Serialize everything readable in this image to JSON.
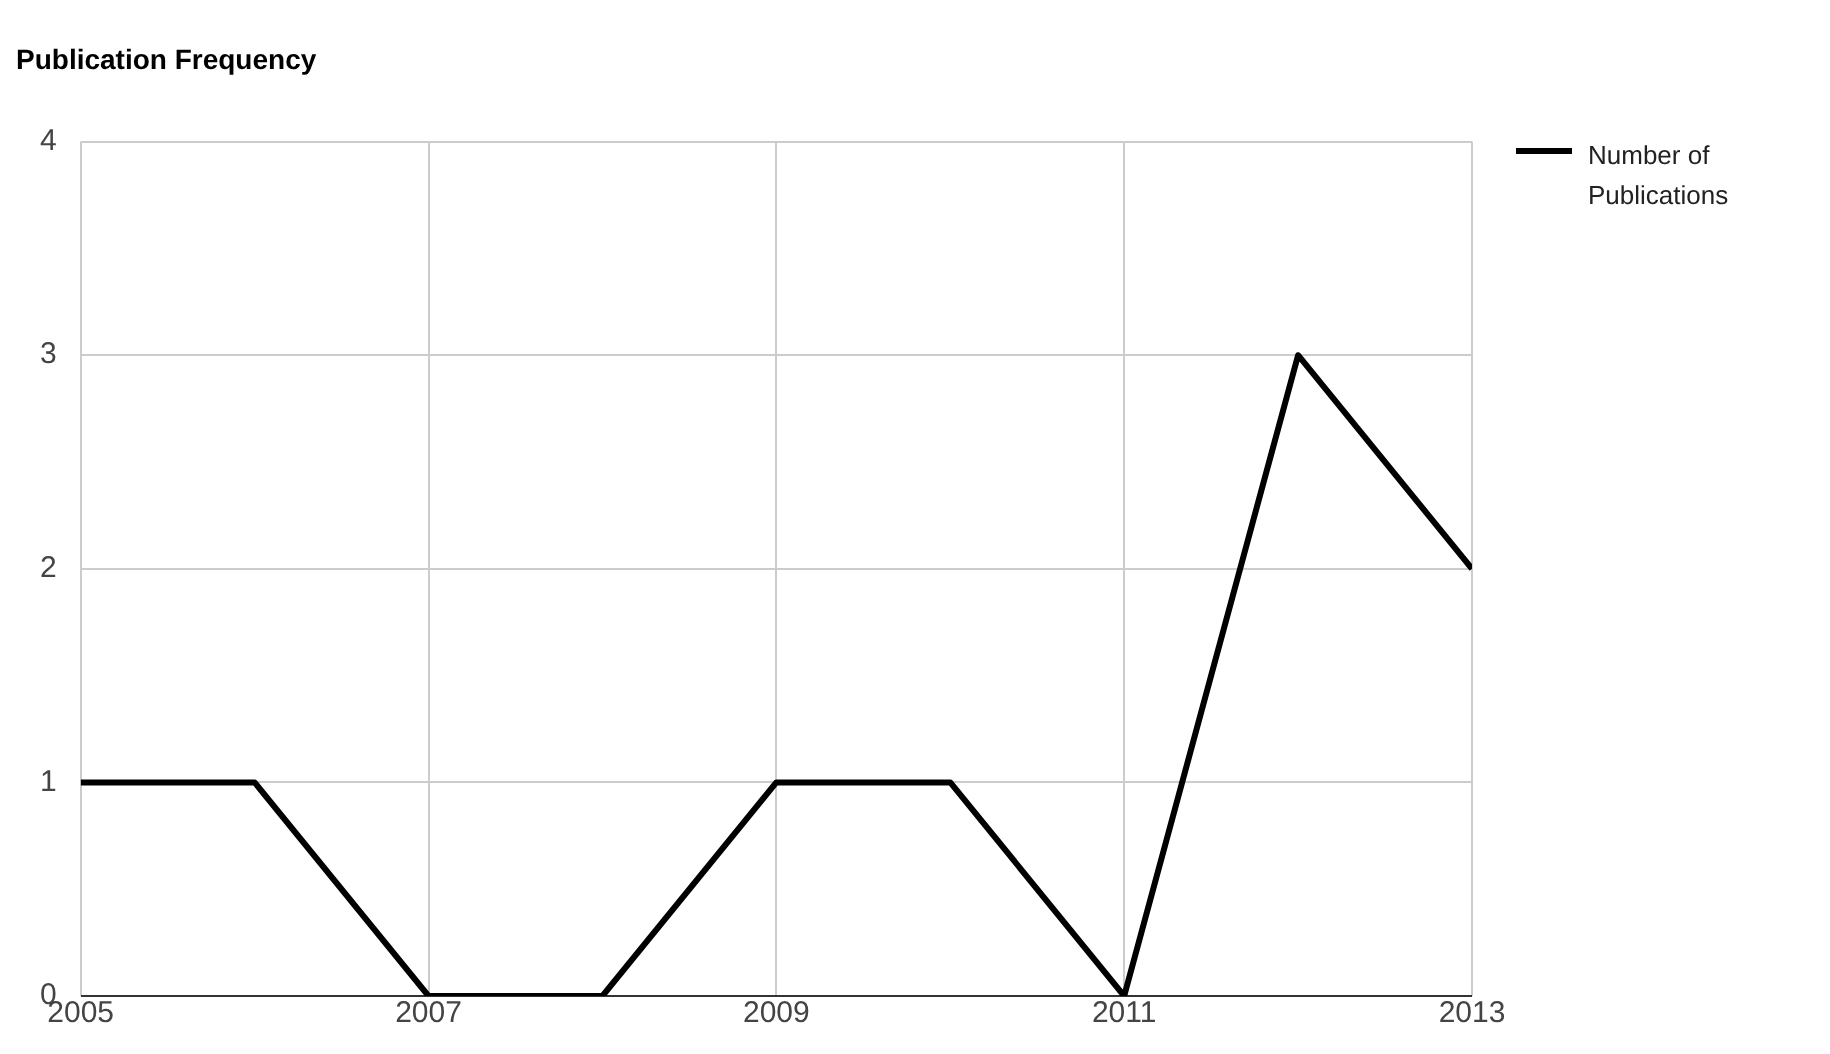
{
  "chart_data": {
    "type": "line",
    "title": "Publication Frequency",
    "x": [
      2005,
      2006,
      2007,
      2008,
      2009,
      2010,
      2011,
      2012,
      2013
    ],
    "series": [
      {
        "name": "Number of Publications",
        "color": "#000000",
        "values": [
          1,
          1,
          0,
          0,
          1,
          1,
          0,
          3,
          2
        ]
      }
    ],
    "xlim": [
      2005,
      2013
    ],
    "xticks": [
      2005,
      2007,
      2009,
      2011,
      2013
    ],
    "ylim": [
      0,
      4
    ],
    "yticks": [
      0,
      1,
      2,
      3,
      4
    ],
    "grid": true,
    "legend": "top right",
    "marker": "none",
    "line_style": "solid"
  }
}
